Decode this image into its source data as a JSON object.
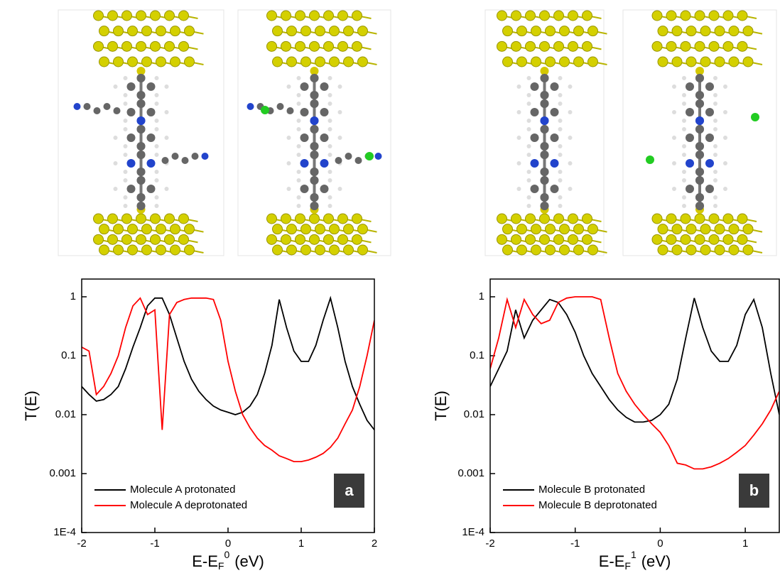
{
  "chart_data": [
    {
      "type": "line",
      "panel_label": "a",
      "y_label": "T(E)",
      "x_label": {
        "text": "E-E",
        "sub": "F",
        "sup": "0",
        "unit": "(eV)"
      },
      "log_y": true,
      "legend": "lower left",
      "xlim": [
        -2,
        2
      ],
      "ylim": [
        0.0001,
        2
      ],
      "xticks": [
        -2,
        -1,
        0,
        1,
        2
      ],
      "yticks": [
        {
          "value": 0.0001,
          "label": "1E-4"
        },
        0.001,
        0.01,
        0.1,
        1
      ],
      "x": [
        -2.0,
        -1.9,
        -1.8,
        -1.7,
        -1.6,
        -1.5,
        -1.4,
        -1.3,
        -1.2,
        -1.1,
        -1.0,
        -0.9,
        -0.8,
        -0.7,
        -0.6,
        -0.5,
        -0.4,
        -0.3,
        -0.2,
        -0.1,
        0,
        0.1,
        0.2,
        0.3,
        0.4,
        0.5,
        0.6,
        0.7,
        0.8,
        0.9,
        1.0,
        1.1,
        1.2,
        1.3,
        1.4,
        1.5,
        1.6,
        1.7,
        1.8,
        1.9,
        2.0
      ],
      "series": [
        {
          "name": "Molecule A protonated",
          "color": "#000000",
          "values": [
            0.03,
            0.022,
            0.017,
            0.018,
            0.022,
            0.03,
            0.06,
            0.14,
            0.3,
            0.7,
            0.95,
            0.95,
            0.5,
            0.2,
            0.08,
            0.04,
            0.025,
            0.018,
            0.014,
            0.012,
            0.011,
            0.01,
            0.011,
            0.014,
            0.022,
            0.05,
            0.15,
            0.9,
            0.3,
            0.12,
            0.08,
            0.08,
            0.15,
            0.4,
            0.95,
            0.3,
            0.08,
            0.03,
            0.015,
            0.008,
            0.0055
          ]
        },
        {
          "name": "Molecule A deprotonated",
          "color": "#ff0000",
          "values": [
            0.14,
            0.12,
            0.022,
            0.03,
            0.05,
            0.1,
            0.3,
            0.7,
            0.95,
            0.5,
            0.6,
            0.0055,
            0.5,
            0.8,
            0.9,
            0.95,
            0.95,
            0.95,
            0.9,
            0.4,
            0.08,
            0.025,
            0.01,
            0.006,
            0.004,
            0.003,
            0.0025,
            0.002,
            0.0018,
            0.0016,
            0.0016,
            0.0017,
            0.0019,
            0.0022,
            0.0028,
            0.004,
            0.007,
            0.012,
            0.03,
            0.1,
            0.4
          ]
        }
      ]
    },
    {
      "type": "line",
      "panel_label": "b",
      "y_label": "T(E)",
      "x_label": {
        "text": "E-E",
        "sub": "F",
        "sup": "1",
        "unit": "(eV)"
      },
      "log_y": true,
      "legend": "lower left",
      "xlim": [
        -2,
        1.4
      ],
      "ylim": [
        0.0001,
        2
      ],
      "xticks": [
        -2,
        -1,
        0,
        1
      ],
      "yticks": [
        {
          "value": 0.0001,
          "label": "1E-4"
        },
        0.001,
        0.01,
        0.1,
        1
      ],
      "x": [
        -2.0,
        -1.9,
        -1.8,
        -1.7,
        -1.6,
        -1.5,
        -1.4,
        -1.3,
        -1.2,
        -1.1,
        -1.0,
        -0.9,
        -0.8,
        -0.7,
        -0.6,
        -0.5,
        -0.4,
        -0.3,
        -0.2,
        -0.1,
        0,
        0.1,
        0.2,
        0.3,
        0.4,
        0.5,
        0.6,
        0.7,
        0.8,
        0.9,
        1.0,
        1.1,
        1.2,
        1.3,
        1.4
      ],
      "series": [
        {
          "name": "Molecule B protonated",
          "color": "#000000",
          "values": [
            0.03,
            0.06,
            0.12,
            0.6,
            0.2,
            0.4,
            0.6,
            0.9,
            0.8,
            0.5,
            0.25,
            0.1,
            0.05,
            0.03,
            0.018,
            0.012,
            0.009,
            0.0075,
            0.0075,
            0.008,
            0.01,
            0.015,
            0.04,
            0.2,
            0.95,
            0.3,
            0.12,
            0.08,
            0.08,
            0.15,
            0.5,
            0.9,
            0.3,
            0.05,
            0.01
          ]
        },
        {
          "name": "Molecule B deprotonated",
          "color": "#ff0000",
          "values": [
            0.06,
            0.2,
            0.9,
            0.3,
            0.9,
            0.5,
            0.35,
            0.4,
            0.8,
            0.95,
            1,
            1,
            1,
            0.9,
            0.2,
            0.05,
            0.025,
            0.015,
            0.01,
            0.007,
            0.005,
            0.003,
            0.0015,
            0.0014,
            0.0012,
            0.0012,
            0.0013,
            0.0015,
            0.0018,
            0.0023,
            0.003,
            0.0045,
            0.007,
            0.012,
            0.025
          ]
        }
      ]
    }
  ]
}
